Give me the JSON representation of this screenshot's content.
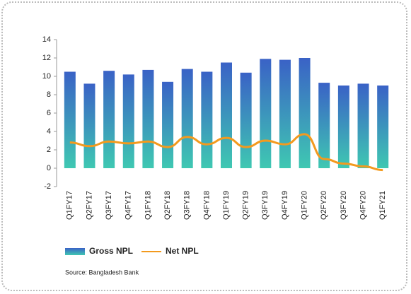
{
  "chart_data": {
    "type": "bar",
    "categories": [
      "Q1FY17",
      "Q2FY17",
      "Q3FY17",
      "Q4FY17",
      "Q1FY18",
      "Q2FY18",
      "Q3FY18",
      "Q4FY18",
      "Q1FY19",
      "Q2FY19",
      "Q3FY19",
      "Q4FY19",
      "Q1FY20",
      "Q2FY20",
      "Q3FY20",
      "Q4FY20",
      "Q1FY21"
    ],
    "series": [
      {
        "name": "Gross NPL",
        "type": "bar",
        "color": "#3a62c6",
        "values": [
          10.5,
          9.2,
          10.6,
          10.2,
          10.7,
          9.4,
          10.8,
          10.5,
          11.5,
          10.4,
          11.9,
          11.8,
          12.0,
          9.3,
          9.0,
          9.2,
          9.0
        ]
      },
      {
        "name": "Net NPL",
        "type": "line",
        "color": "#f39a1e",
        "values": [
          2.8,
          2.4,
          2.9,
          2.7,
          2.9,
          2.3,
          3.4,
          2.6,
          3.3,
          2.3,
          3.0,
          2.6,
          3.7,
          1.0,
          0.5,
          0.2,
          -0.2
        ]
      }
    ],
    "ylim": [
      -2,
      14
    ],
    "yticks": [
      -2,
      0,
      2,
      4,
      6,
      8,
      10,
      12,
      14
    ],
    "source": "Source: Bangladesh Bank"
  }
}
